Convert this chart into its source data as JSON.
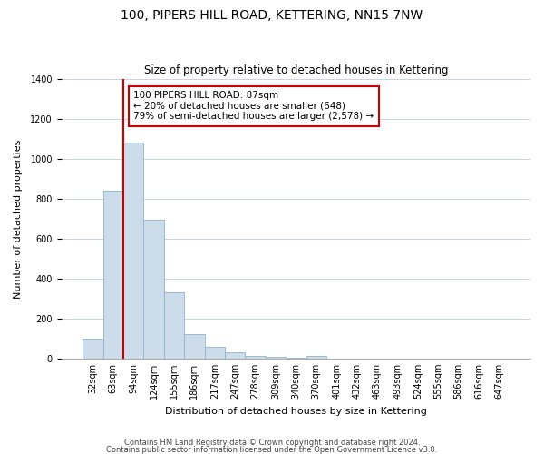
{
  "title": "100, PIPERS HILL ROAD, KETTERING, NN15 7NW",
  "subtitle": "Size of property relative to detached houses in Kettering",
  "xlabel": "Distribution of detached houses by size in Kettering",
  "ylabel": "Number of detached properties",
  "bar_labels": [
    "32sqm",
    "63sqm",
    "94sqm",
    "124sqm",
    "155sqm",
    "186sqm",
    "217sqm",
    "247sqm",
    "278sqm",
    "309sqm",
    "340sqm",
    "370sqm",
    "401sqm",
    "432sqm",
    "463sqm",
    "493sqm",
    "524sqm",
    "555sqm",
    "586sqm",
    "616sqm",
    "647sqm"
  ],
  "bar_values": [
    100,
    840,
    1080,
    695,
    330,
    120,
    60,
    30,
    15,
    8,
    3,
    15,
    0,
    0,
    0,
    0,
    0,
    0,
    0,
    0,
    0
  ],
  "bar_color": "#ccdcea",
  "bar_edge_color": "#8db4cc",
  "vline_color": "#cc0000",
  "vline_x_index": 1.5,
  "annotation_line1": "100 PIPERS HILL ROAD: 87sqm",
  "annotation_line2": "← 20% of detached houses are smaller (648)",
  "annotation_line3": "79% of semi-detached houses are larger (2,578) →",
  "annotation_box_color": "#ffffff",
  "annotation_box_edge": "#cc0000",
  "ylim": [
    0,
    1400
  ],
  "yticks": [
    0,
    200,
    400,
    600,
    800,
    1000,
    1200,
    1400
  ],
  "footer1": "Contains HM Land Registry data © Crown copyright and database right 2024.",
  "footer2": "Contains public sector information licensed under the Open Government Licence v3.0.",
  "bg_color": "#ffffff",
  "grid_color": "#c8d4e0",
  "title_fontsize": 10,
  "subtitle_fontsize": 8.5,
  "axis_label_fontsize": 8,
  "tick_fontsize": 7,
  "annotation_fontsize": 7.5,
  "footer_fontsize": 6
}
